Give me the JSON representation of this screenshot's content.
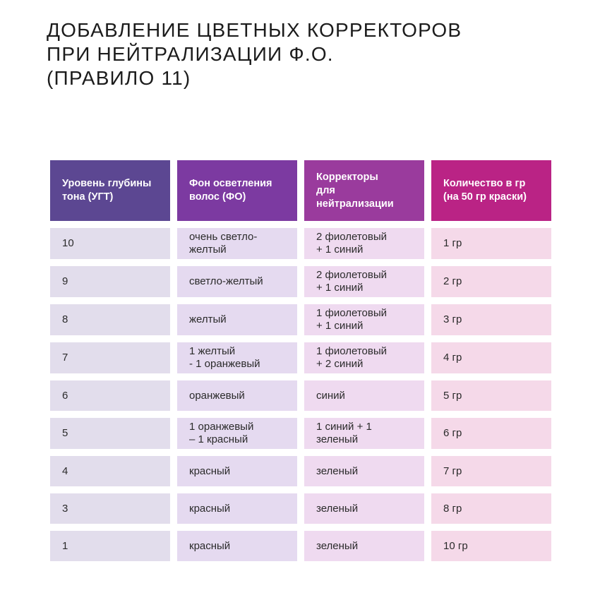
{
  "page": {
    "background_color": "#ffffff"
  },
  "title": {
    "text": "ДОБАВЛЕНИЕ ЦВЕТНЫХ КОРРЕКТОРОВ\nПРИ НЕЙТРАЛИЗАЦИИ Ф.О.\n(ПРАВИЛО 11)"
  },
  "table": {
    "columns": [
      {
        "header": "Уровень глубины\nтона (УГТ)",
        "header_color": "#5c4792",
        "cell_color": "#e2ddec"
      },
      {
        "header": "Фон осветления\nволос (ФО)",
        "header_color": "#7c3aa1",
        "cell_color": "#e5daf0"
      },
      {
        "header": "Корректоры\nдля нейтрализации",
        "header_color": "#9a3b9d",
        "cell_color": "#efdaf0"
      },
      {
        "header": "Количество в гр\n(на 50 гр краски)",
        "header_color": "#ba2385",
        "cell_color": "#f5d9e9"
      }
    ],
    "rows": [
      {
        "cells": [
          "10",
          "очень светло-желтый",
          "2 фиолетовый\n+ 1 синий",
          "1 гр"
        ]
      },
      {
        "cells": [
          "9",
          "светло-желтый",
          "2 фиолетовый\n+ 1 синий",
          "2 гр"
        ]
      },
      {
        "cells": [
          "8",
          "желтый",
          "1 фиолетовый\n+ 1 синий",
          "3 гр"
        ]
      },
      {
        "cells": [
          "7",
          "1 желтый\n- 1 оранжевый",
          "1 фиолетовый\n+ 2 синий",
          "4 гр"
        ]
      },
      {
        "cells": [
          "6",
          "оранжевый",
          "синий",
          "5 гр"
        ]
      },
      {
        "cells": [
          "5",
          "1 оранжевый\n– 1 красный",
          "1 синий + 1 зеленый",
          "6 гр"
        ]
      },
      {
        "cells": [
          "4",
          "красный",
          "зеленый",
          "7 гр"
        ]
      },
      {
        "cells": [
          "3",
          "красный",
          "зеленый",
          "8 гр"
        ]
      },
      {
        "cells": [
          "1",
          "красный",
          "зеленый",
          "10 гр"
        ]
      }
    ]
  }
}
